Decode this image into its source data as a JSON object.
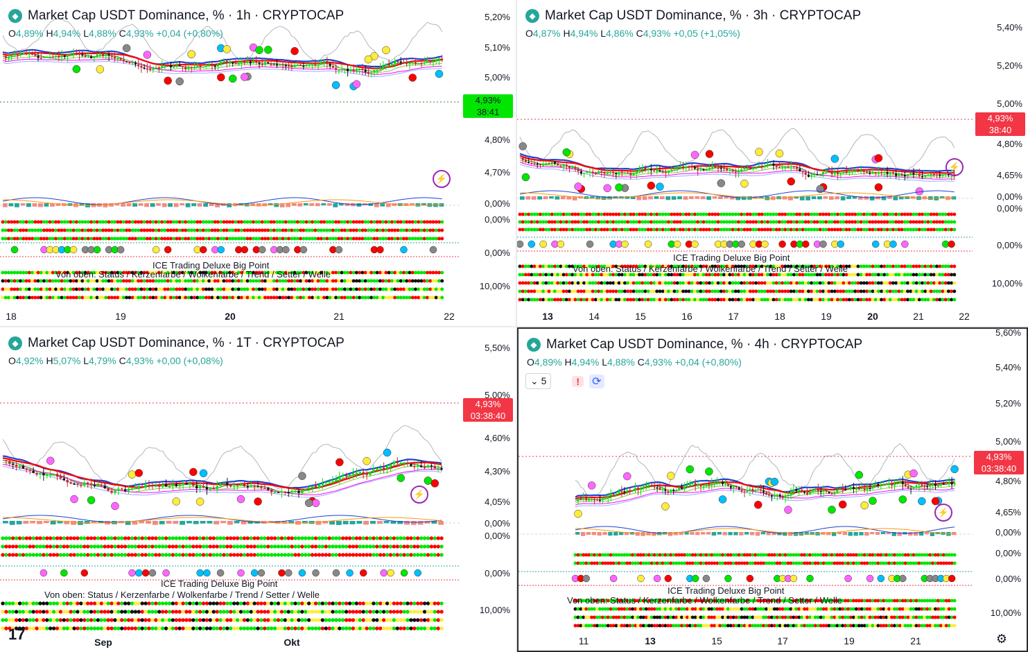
{
  "panels": [
    {
      "title": "Market Cap USDT Dominance, % · 1h · CRYPTOCAP",
      "ohlc": {
        "o": "4,89%",
        "h": "4,94%",
        "l": "4,88%",
        "c": "4,93%",
        "chg": "+0,04 (+0,80%)"
      },
      "price_ticks": [
        "5,20%",
        "5,10%",
        "5,00%",
        "4,80%",
        "4,70%",
        "0,00%",
        "0,00%",
        "0,00%",
        "10,00%"
      ],
      "price_tag": {
        "value": "4,93%",
        "timer": "38:41",
        "color": "#00e600"
      },
      "x_ticks": [
        "18",
        "19",
        "20",
        "21",
        "22"
      ],
      "legend": [
        "ICE Trading Deluxe Big Point",
        "Von oben: Status / Kerzenfarbe / Wolkenfarbe / Trend / Setter / Welle"
      ]
    },
    {
      "title": "Market Cap USDT Dominance, % · 3h · CRYPTOCAP",
      "ohlc": {
        "o": "4,87%",
        "h": "4,94%",
        "l": "4,86%",
        "c": "4,93%",
        "chg": "+0,05 (+1,05%)"
      },
      "price_ticks": [
        "5,40%",
        "5,20%",
        "5,00%",
        "4,80%",
        "4,65%",
        "0,00%",
        "0,00%",
        "0,00%",
        "10,00%"
      ],
      "price_tag": {
        "value": "4,93%",
        "timer": "38:40",
        "color": "#f23645"
      },
      "x_ticks": [
        "13",
        "14",
        "15",
        "16",
        "17",
        "18",
        "19",
        "20",
        "21",
        "22"
      ],
      "legend": [
        "ICE Trading Deluxe Big Point",
        "Von oben: Status / Kerzenfarbe / Wolkenfarbe / Trend / Setter / Welle"
      ]
    },
    {
      "title": "Market Cap USDT Dominance, % · 1T · CRYPTOCAP",
      "ohlc": {
        "o": "4,92%",
        "h": "5,07%",
        "l": "4,79%",
        "c": "4,93%",
        "chg": "+0,00 (+0,08%)"
      },
      "price_ticks": [
        "5,50%",
        "5,00%",
        "4,60%",
        "4,30%",
        "4,05%",
        "0,00%",
        "0,00%",
        "0,00%",
        "10,00%"
      ],
      "price_tag": {
        "value": "4,93%",
        "timer": "03:38:40",
        "color": "#f23645"
      },
      "x_ticks": [
        "Sep",
        "Okt"
      ],
      "legend": [
        "ICE Trading Deluxe Big Point",
        "Von oben: Status / Kerzenfarbe / Wolkenfarbe / Trend / Setter / Welle"
      ]
    },
    {
      "title": "Market Cap USDT Dominance, % · 4h · CRYPTOCAP",
      "ohlc": {
        "o": "4,89%",
        "h": "4,94%",
        "l": "4,88%",
        "c": "4,93%",
        "chg": "+0,04 (+0,80%)"
      },
      "price_ticks": [
        "5,60%",
        "5,40%",
        "5,20%",
        "5,00%",
        "4,80%",
        "4,65%",
        "0,00%",
        "0,00%",
        "0,00%",
        "10,00%"
      ],
      "price_tag": {
        "value": "4,93%",
        "timer": "03:38:40",
        "color": "#f23645"
      },
      "x_ticks": [
        "11",
        "13",
        "15",
        "17",
        "19",
        "21"
      ],
      "legend": [
        "ICE Trading Deluxe Big Point",
        "Von oben: Status / Kerzenfarbe / Wolkenfarbe / Trend / Setter / Welle"
      ],
      "controls": {
        "indicator_count": "5",
        "warning": "!"
      }
    }
  ],
  "labels": {
    "o": "O",
    "h": "H",
    "l": "L",
    "c": "C"
  },
  "icons": {
    "logo": "tether-logo-icon",
    "lightning": "lightning-icon",
    "gear": "gear-icon",
    "chevron": "chevron-down-icon",
    "sync": "sync-icon",
    "tv": "tradingview-logo-icon"
  },
  "colors": {
    "up": "#26a69a",
    "down": "#f23645",
    "green": "#00e600",
    "red": "#ff0000",
    "blue": "#2962ff"
  }
}
